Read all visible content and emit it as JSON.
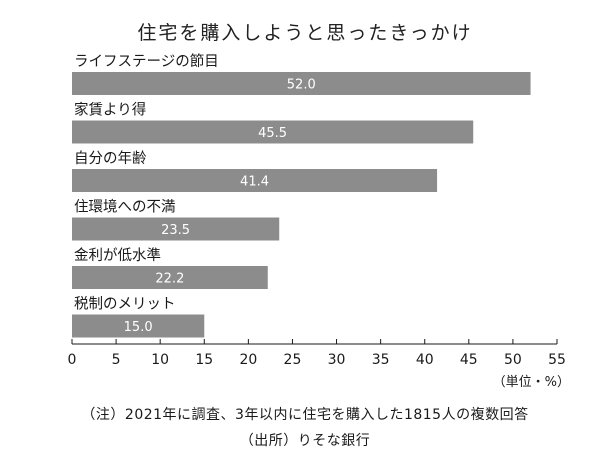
{
  "chart_data": {
    "type": "bar",
    "orientation": "horizontal",
    "title": "住宅を購入しようと思ったきっかけ",
    "categories": [
      "ライフステージの節目",
      "家賃より得",
      "自分の年齢",
      "住環境への不満",
      "金利が低水準",
      "税制のメリット"
    ],
    "values": [
      52.0,
      45.5,
      41.4,
      23.5,
      22.2,
      15.0
    ],
    "value_labels": [
      "52.0",
      "45.5",
      "41.4",
      "23.5",
      "22.2",
      "15.0"
    ],
    "xlim": [
      0,
      55
    ],
    "xticks": [
      "0",
      "5",
      "10",
      "15",
      "20",
      "25",
      "30",
      "35",
      "40",
      "45",
      "50",
      "55"
    ],
    "unit": "（単位・%）",
    "grid": false,
    "bar_color": "#8c8c8c"
  },
  "footer": {
    "note": "（注）2021年に調査、3年以内に住宅を購入した1815人の複数回答",
    "source": "（出所）りそな銀行"
  }
}
